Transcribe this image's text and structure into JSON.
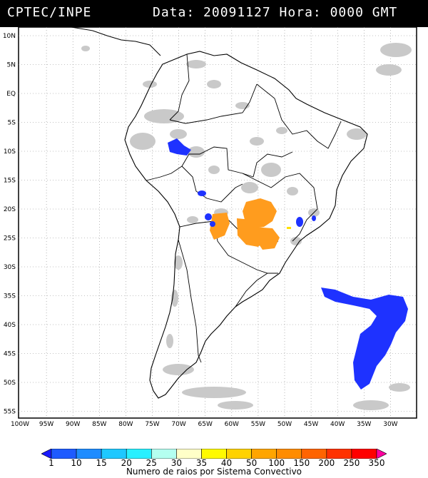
{
  "header": {
    "source": "CPTEC/INPE",
    "datetime": "Data: 20091127 Hora: 0000 GMT"
  },
  "map": {
    "lat_labels": [
      "10N",
      "5N",
      "EQ",
      "5S",
      "10S",
      "15S",
      "20S",
      "25S",
      "30S",
      "35S",
      "40S",
      "45S",
      "50S",
      "55S"
    ],
    "lon_labels": [
      "100W",
      "95W",
      "90W",
      "85W",
      "80W",
      "75W",
      "70W",
      "65W",
      "60W",
      "55W",
      "50W",
      "45W",
      "40W",
      "35W",
      "30W"
    ],
    "colors": {
      "cloud_gray": "#c8c8c8",
      "convective_blue": "#1e32ff",
      "convective_orange": "#ff9c1e",
      "convective_yellow": "#ffe100"
    }
  },
  "legend": {
    "title": "Numero de raios por Sistema Convectivo",
    "ticks": [
      "1",
      "10",
      "15",
      "20",
      "25",
      "30",
      "35",
      "40",
      "50",
      "100",
      "150",
      "200",
      "250",
      "350"
    ],
    "colors": [
      "#1a1aff",
      "#1e5bff",
      "#1e8cff",
      "#1ec8ff",
      "#28f0ff",
      "#b4fff0",
      "#ffffc8",
      "#fffa00",
      "#ffd200",
      "#ffa500",
      "#ff8c00",
      "#ff6400",
      "#ff3200",
      "#ff0000",
      "#ff00a0"
    ]
  }
}
